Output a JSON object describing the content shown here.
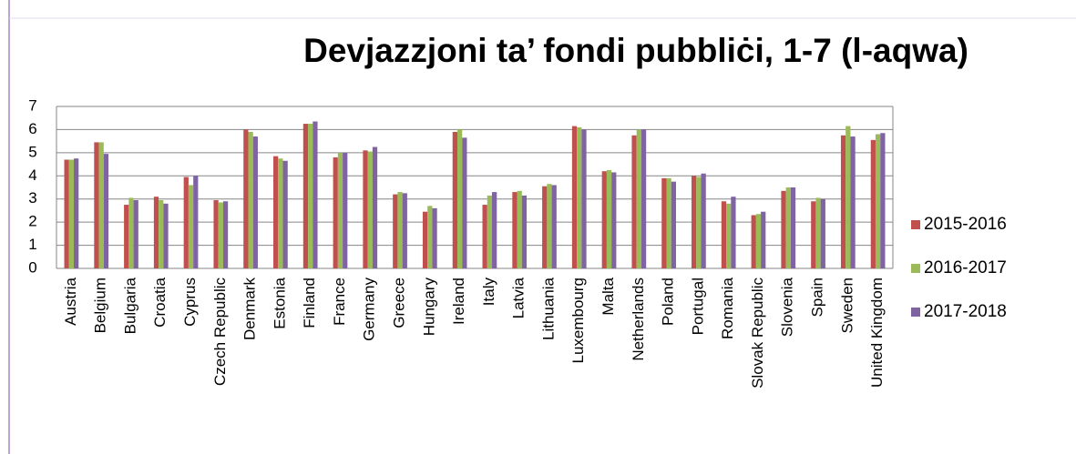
{
  "chart_data": {
    "type": "bar",
    "title": "Devjazzjoni ta’ fondi pubbliċi, 1-7 (l-aqwa)",
    "categories": [
      "Austria",
      "Belgium",
      "Bulgaria",
      "Croatia",
      "Cyprus",
      "Czech Republic",
      "Denmark",
      "Estonia",
      "Finland",
      "France",
      "Germany",
      "Greece",
      "Hungary",
      "Ireland",
      "Italy",
      "Latvia",
      "Lithuania",
      "Luxembourg",
      "Malta",
      "Netherlands",
      "Poland",
      "Portugal",
      "Romania",
      "Slovak Republic",
      "Slovenia",
      "Spain",
      "Sweden",
      "United Kingdom"
    ],
    "series": [
      {
        "name": "2015-2016",
        "color": "#c0504d",
        "values": [
          4.7,
          5.45,
          2.75,
          3.1,
          3.95,
          2.95,
          6.0,
          4.85,
          6.25,
          4.8,
          5.1,
          3.2,
          2.45,
          5.9,
          2.75,
          3.3,
          3.55,
          6.15,
          4.2,
          5.75,
          3.9,
          4.0,
          2.9,
          2.3,
          3.35,
          2.9,
          5.75,
          5.55
        ]
      },
      {
        "name": "2016-2017",
        "color": "#9bbb59",
        "values": [
          4.7,
          5.45,
          3.05,
          2.95,
          3.6,
          2.85,
          5.9,
          4.75,
          6.25,
          5.0,
          5.05,
          3.3,
          2.7,
          6.0,
          3.15,
          3.35,
          3.65,
          6.1,
          4.25,
          6.0,
          3.9,
          3.95,
          2.8,
          2.35,
          3.5,
          3.05,
          6.15,
          5.8
        ]
      },
      {
        "name": "2017-2018",
        "color": "#8064a2",
        "values": [
          4.75,
          4.95,
          2.95,
          2.8,
          4.0,
          2.9,
          5.7,
          4.65,
          6.35,
          5.0,
          5.25,
          3.25,
          2.6,
          5.65,
          3.3,
          3.15,
          3.6,
          6.0,
          4.15,
          6.0,
          3.75,
          4.1,
          3.1,
          2.45,
          3.5,
          3.0,
          5.7,
          5.85
        ]
      }
    ],
    "ylim": [
      0,
      7
    ],
    "yticks": [
      0,
      1,
      2,
      3,
      4,
      5,
      6,
      7
    ],
    "grid": true,
    "legend": "right"
  }
}
